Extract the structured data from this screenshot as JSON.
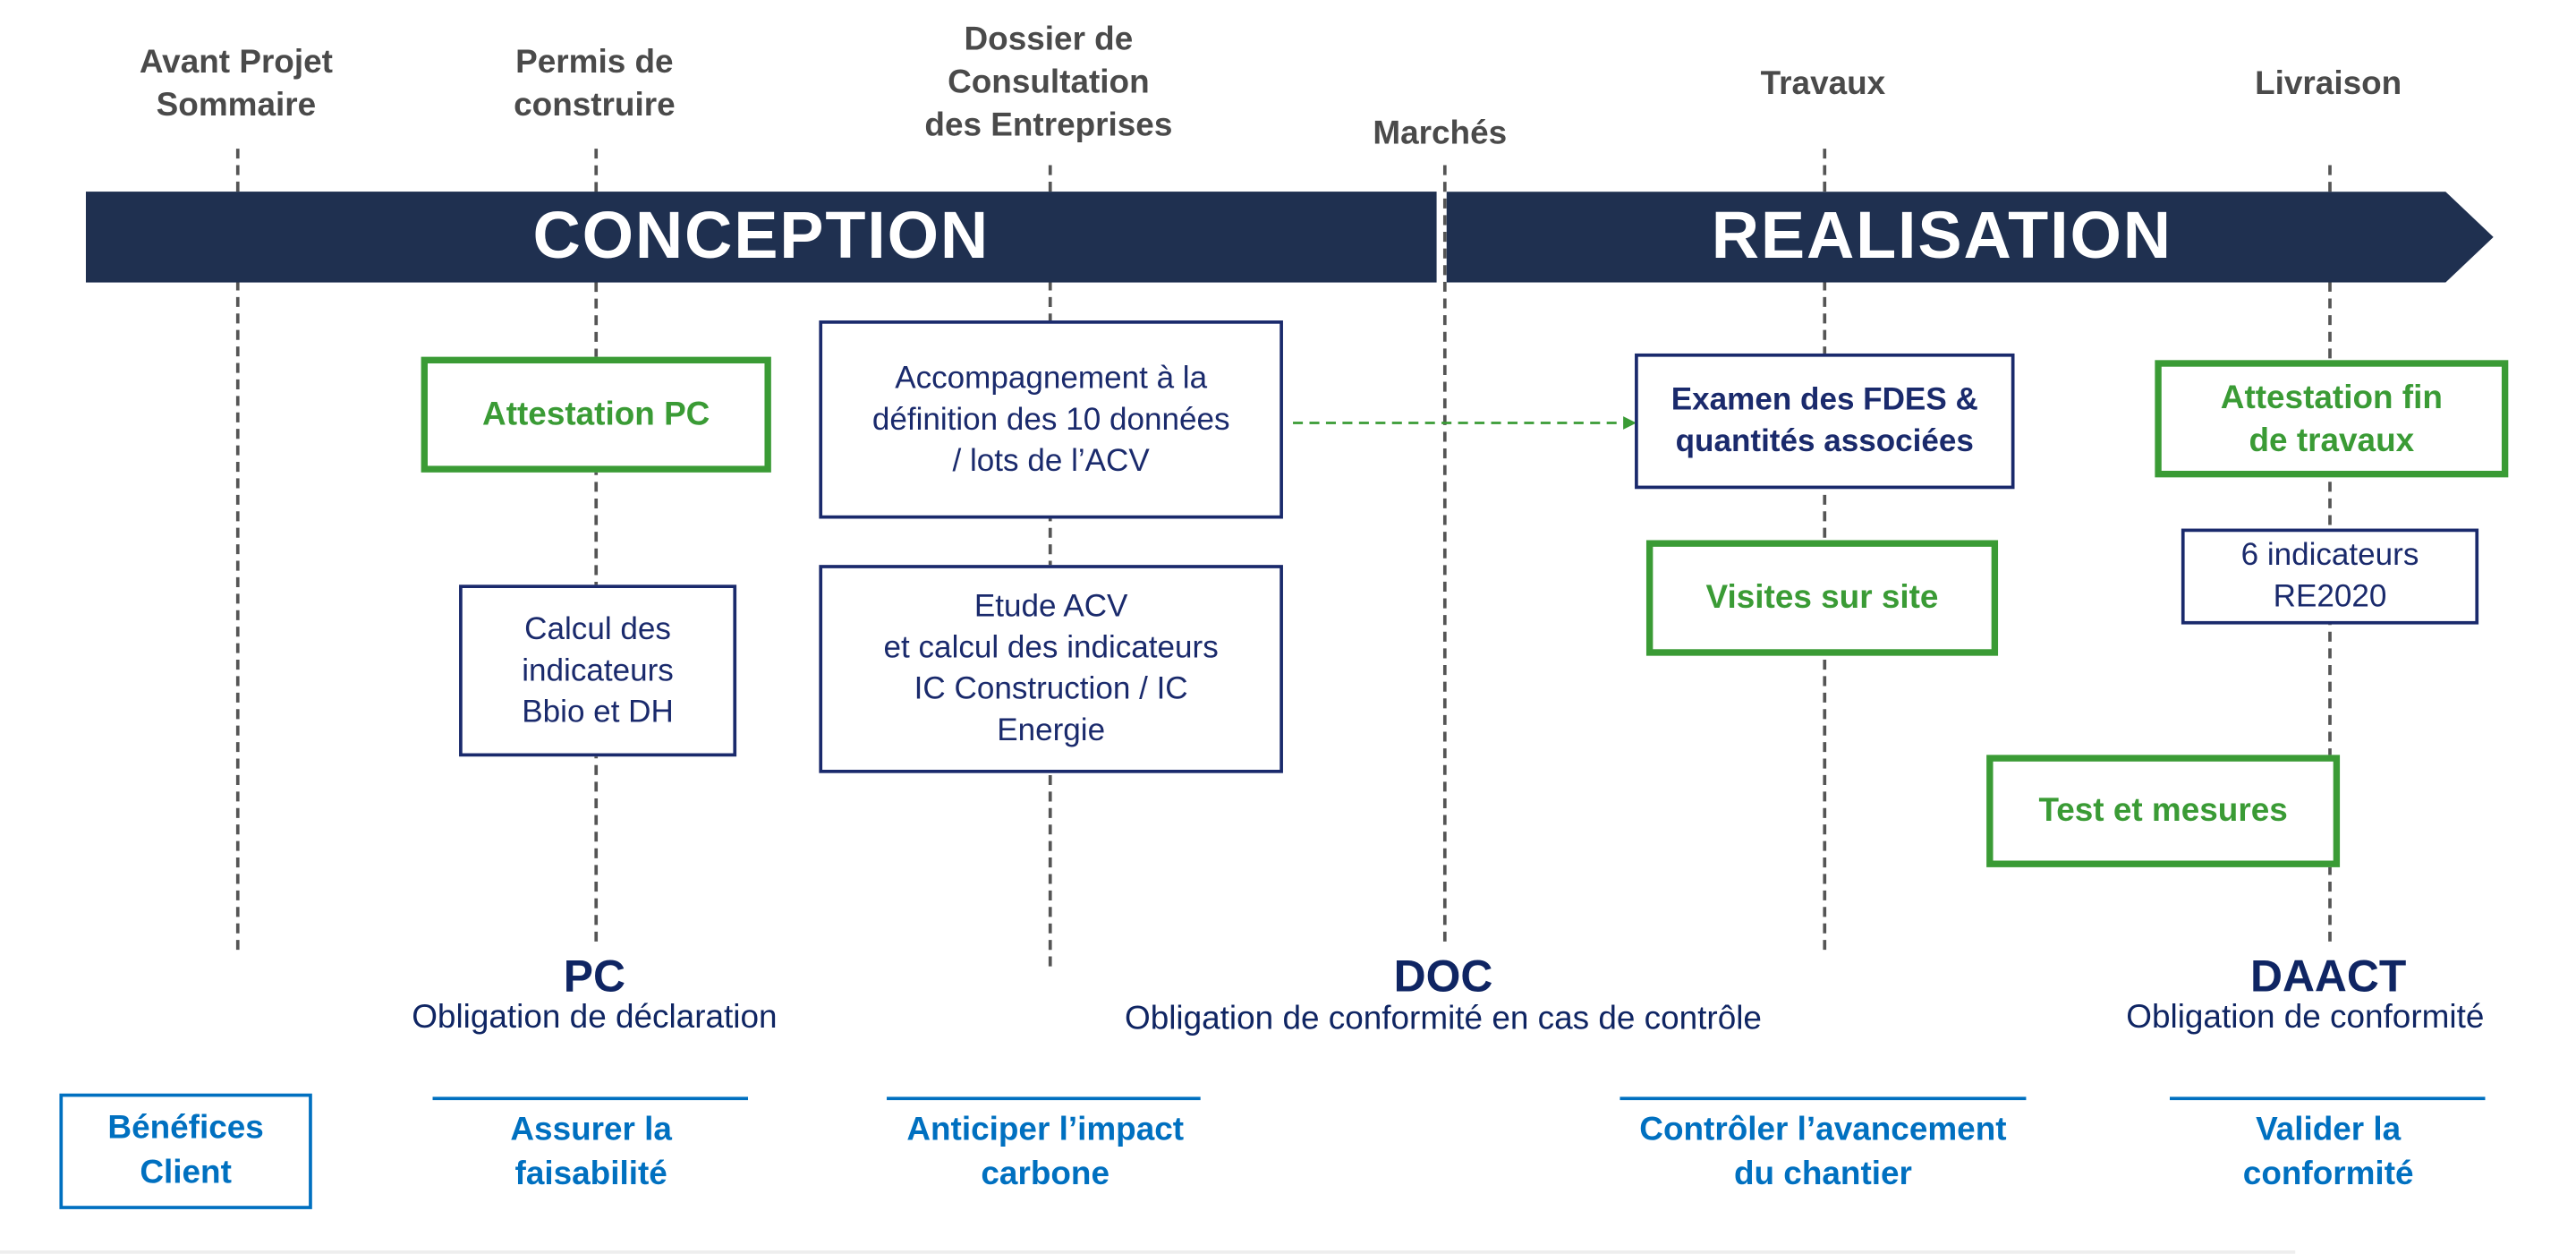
{
  "colors": {
    "banner": "#1f3050",
    "green": "#3a9b35",
    "navy": "#1a2a6c",
    "blue": "#0070c0",
    "phase_text": "#4a4a4a"
  },
  "phases": {
    "aps": "Avant Projet\nSommaire",
    "pc": "Permis de\nconstruire",
    "dce": "Dossier de\nConsultation\ndes Entreprises",
    "marches": "Marchés",
    "travaux": "Travaux",
    "livraison": "Livraison"
  },
  "banner": {
    "conception": "CONCEPTION",
    "realisation": "REALISATION"
  },
  "boxes": {
    "attestation_pc": "Attestation PC",
    "accompagnement": "Accompagnement à la\ndéfinition des 10 données\n/ lots de l’ACV",
    "calcul": "Calcul des\nindicateurs\nBbio et DH",
    "etude": "Etude ACV\net calcul des indicateurs\nIC Construction / IC\nEnergie",
    "examen": "Examen des FDES &\nquantités associées",
    "visites": "Visites sur site",
    "attestation_fin": "Attestation fin\nde travaux",
    "indicateurs": "6 indicateurs\nRE2020",
    "test": "Test et mesures"
  },
  "documents": {
    "pc": {
      "title": "PC",
      "subtitle": "Obligation de déclaration"
    },
    "doc": {
      "title": "DOC",
      "subtitle": "Obligation de conformité en cas de contrôle"
    },
    "daact": {
      "title": "DAACT",
      "subtitle": "Obligation de conformité"
    }
  },
  "benefits": {
    "label": "Bénéfices\nClient",
    "items": [
      "Assurer la\nfaisabilité",
      "Anticiper l’impact\ncarbone",
      "Contrôler l’avancement\ndu chantier",
      "Valider la\nconformité"
    ]
  }
}
